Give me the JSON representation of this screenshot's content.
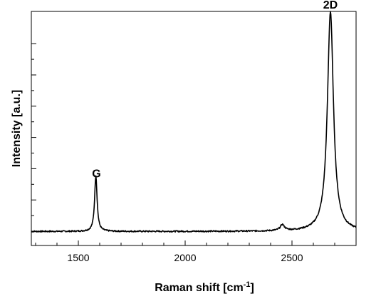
{
  "chart_data": {
    "type": "line",
    "xlabel": "Raman shift [cm",
    "xlabel_sup": "-1",
    "xlabel_end": "]",
    "ylabel": "Intensity [a.u.]",
    "xlim": [
      1280,
      2800
    ],
    "ylim": [
      0,
      1.0
    ],
    "x_ticks": [
      1500,
      2000,
      2500
    ],
    "x_tick_labels": [
      "1500",
      "2000",
      "2500"
    ],
    "y_tick_labels_shown": false,
    "grid": false,
    "legend": "none",
    "baseline": 0.06,
    "line_color": "#000000",
    "annotations": [
      {
        "text": "G",
        "x": 1585,
        "y": 0.31
      },
      {
        "text": "2D",
        "x": 2680,
        "y": 1.03
      }
    ],
    "series": [
      {
        "peaks": [
          {
            "center": 1582,
            "height": 0.24,
            "width": 7
          },
          {
            "center": 2455,
            "height": 0.025,
            "width": 12
          },
          {
            "center": 2680,
            "height": 0.94,
            "width": 17
          }
        ]
      }
    ]
  }
}
